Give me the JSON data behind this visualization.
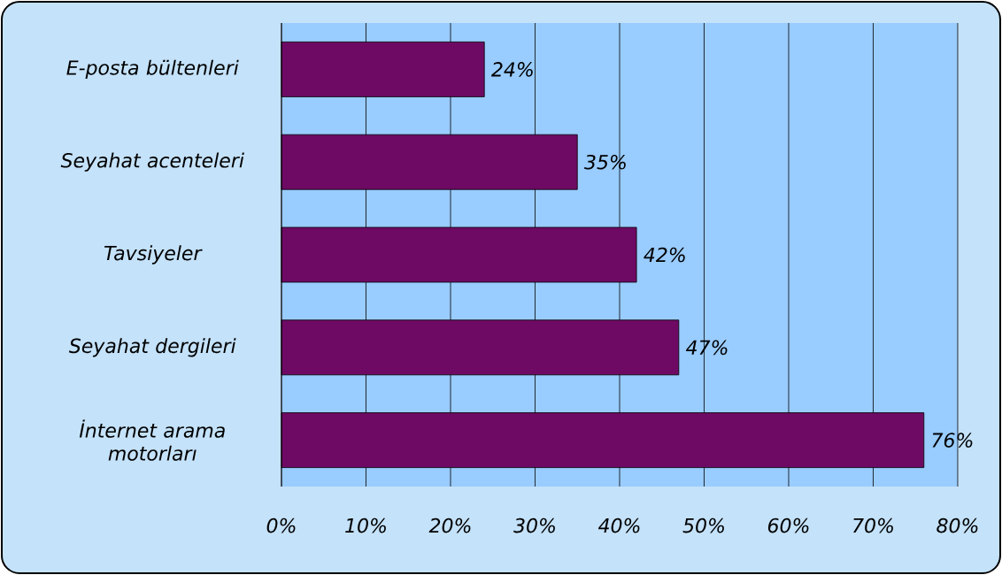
{
  "chart_data": {
    "type": "bar",
    "orientation": "horizontal",
    "categories": [
      "E-posta bültenleri",
      "Seyahat acenteleri",
      "Tavsiyeler",
      "Seyahat dergileri",
      "İnternet arama motorları"
    ],
    "values": [
      24,
      35,
      42,
      47,
      76
    ],
    "value_labels": [
      "24%",
      "35%",
      "42%",
      "47%",
      "76%"
    ],
    "color": "#6e0a63",
    "xlim": [
      0,
      80
    ],
    "xticks": [
      {
        "value": 0,
        "label": "0%"
      },
      {
        "value": 10,
        "label": "10%"
      },
      {
        "value": 20,
        "label": "20%"
      },
      {
        "value": 30,
        "label": "30%"
      },
      {
        "value": 40,
        "label": "40%"
      },
      {
        "value": 50,
        "label": "50%"
      },
      {
        "value": 60,
        "label": "60%"
      },
      {
        "value": 70,
        "label": "70%"
      },
      {
        "value": 80,
        "label": "80%"
      }
    ],
    "grid": "x"
  }
}
